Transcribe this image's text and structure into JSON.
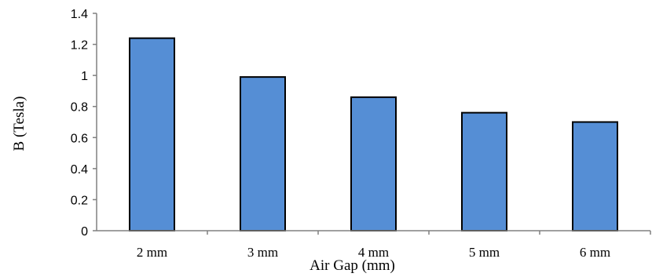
{
  "chart_data": {
    "type": "bar",
    "title": "",
    "xlabel": "Air Gap (mm)",
    "ylabel": "B (Tesla)",
    "categories": [
      "2 mm",
      "3 mm",
      "4 mm",
      "5 mm",
      "6 mm"
    ],
    "values": [
      1.24,
      0.99,
      0.86,
      0.76,
      0.7
    ],
    "ylim": [
      0,
      1.4
    ],
    "yticks": [
      "0",
      "0.2",
      "0.4",
      "0.6",
      "0.8",
      "1",
      "1.2",
      "1.4"
    ],
    "grid": false,
    "legend": "none",
    "bar_color": "#558ED5",
    "bar_edge_color": "#000000"
  }
}
